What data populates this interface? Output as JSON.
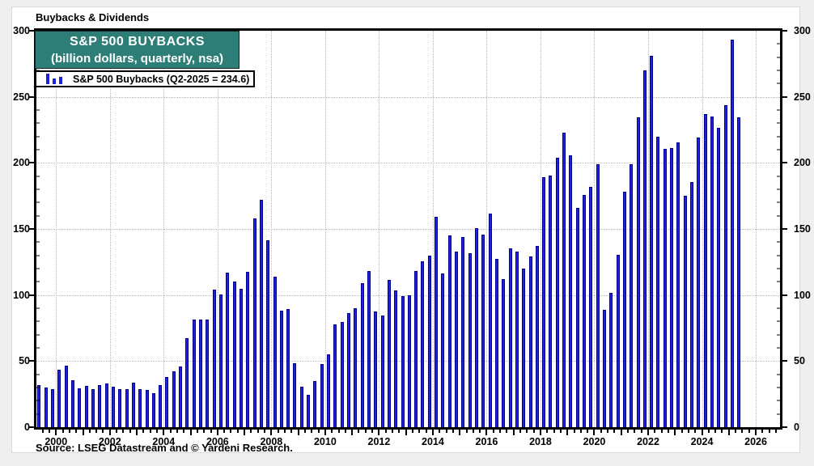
{
  "header": {
    "title": "Buybacks & Dividends"
  },
  "title_box": {
    "line1": "S&P 500 BUYBACKS",
    "line2": "(billion dollars, quarterly, nsa)",
    "bg_color": "#2e7e78"
  },
  "legend": {
    "label": "S&P 500 Buybacks (Q2-2025 = 234.6)",
    "icon": "mini-bar-chart-icon"
  },
  "source_note": "Source: LSEG Datastream and © Yardeni Research.",
  "chart_data": {
    "type": "bar",
    "title": "Buybacks & Dividends",
    "subtitle": "S&P 500 BUYBACKS (billion dollars, quarterly, nsa)",
    "unit": "billion dollars",
    "frequency": "quarterly",
    "x_start": "1999-Q2",
    "x_end": "2025-Q2",
    "start_quarter": 2,
    "ylim": [
      0,
      300
    ],
    "y_major_step": 50,
    "y_minor_step": 10,
    "y_ticks": [
      0,
      50,
      100,
      150,
      200,
      250,
      300
    ],
    "x_year_labels": [
      2000,
      2002,
      2004,
      2006,
      2008,
      2010,
      2012,
      2014,
      2016,
      2018,
      2020,
      2022,
      2024,
      2026
    ],
    "axis_x_min": 1999.27,
    "axis_x_max": 2026.9,
    "grid": true,
    "legend_position": "top-left",
    "bar_color": "#2121dd",
    "bar_edge_color": "#000090",
    "latest_label": "Q2-2025 = 234.6",
    "series": [
      {
        "name": "S&P 500 Buybacks",
        "years": [
          {
            "year": 1999,
            "values": [
              32,
              30,
              29
            ]
          },
          {
            "year": 2000,
            "values": [
              43.5,
              46.5,
              35.5,
              29.5
            ]
          },
          {
            "year": 2001,
            "values": [
              31.5,
              29,
              32,
              33
            ]
          },
          {
            "year": 2002,
            "values": [
              30.5,
              28.5,
              29,
              33.5
            ]
          },
          {
            "year": 2003,
            "values": [
              29,
              28,
              26,
              32
            ]
          },
          {
            "year": 2004,
            "values": [
              38,
              42,
              46,
              67.5
            ]
          },
          {
            "year": 2005,
            "values": [
              81.6,
              81.2,
              81.2,
              104.3
            ]
          },
          {
            "year": 2006,
            "values": [
              100.2,
              116.7,
              110.3,
              104.6
            ]
          },
          {
            "year": 2007,
            "values": [
              117.7,
              157.8,
              171.9,
              141.7
            ]
          },
          {
            "year": 2008,
            "values": [
              113.9,
              87.9,
              89.7,
              48.1
            ]
          },
          {
            "year": 2009,
            "values": [
              30.8,
              24.2,
              34.8,
              47.8
            ]
          },
          {
            "year": 2010,
            "values": [
              55.3,
              77.6,
              79.6,
              86.4
            ]
          },
          {
            "year": 2011,
            "values": [
              89.8,
              109.2,
              118.4,
              87.6
            ]
          },
          {
            "year": 2012,
            "values": [
              84.3,
              111.7,
              103.7,
              99.1
            ]
          },
          {
            "year": 2013,
            "values": [
              100.0,
              118.1,
              125.6,
              129.6
            ]
          },
          {
            "year": 2014,
            "values": [
              159.3,
              116.2,
              145.2,
              132.6
            ]
          },
          {
            "year": 2015,
            "values": [
              144.1,
              131.6,
              150.6,
              145.9
            ]
          },
          {
            "year": 2016,
            "values": [
              161.4,
              127.5,
              112.2,
              135.3
            ]
          },
          {
            "year": 2017,
            "values": [
              133.1,
              120.1,
              129.2,
              137.0
            ]
          },
          {
            "year": 2018,
            "values": [
              189.1,
              190.6,
              203.8,
              223.0
            ]
          },
          {
            "year": 2019,
            "values": [
              205.8,
              165.7,
              175.9,
              181.6
            ]
          },
          {
            "year": 2020,
            "values": [
              198.7,
              88.7,
              101.8,
              130.6
            ]
          },
          {
            "year": 2021,
            "values": [
              178.1,
              198.8,
              234.6,
              270.1
            ]
          },
          {
            "year": 2022,
            "values": [
              281.0,
              219.6,
              210.8,
              211.2
            ]
          },
          {
            "year": 2023,
            "values": [
              215.5,
              174.9,
              185.6,
              219.1
            ]
          },
          {
            "year": 2024,
            "values": [
              236.8,
              235.2,
              226.5,
              243.4
            ]
          },
          {
            "year": 2025,
            "values": [
              293.5,
              234.6
            ]
          }
        ]
      }
    ]
  }
}
